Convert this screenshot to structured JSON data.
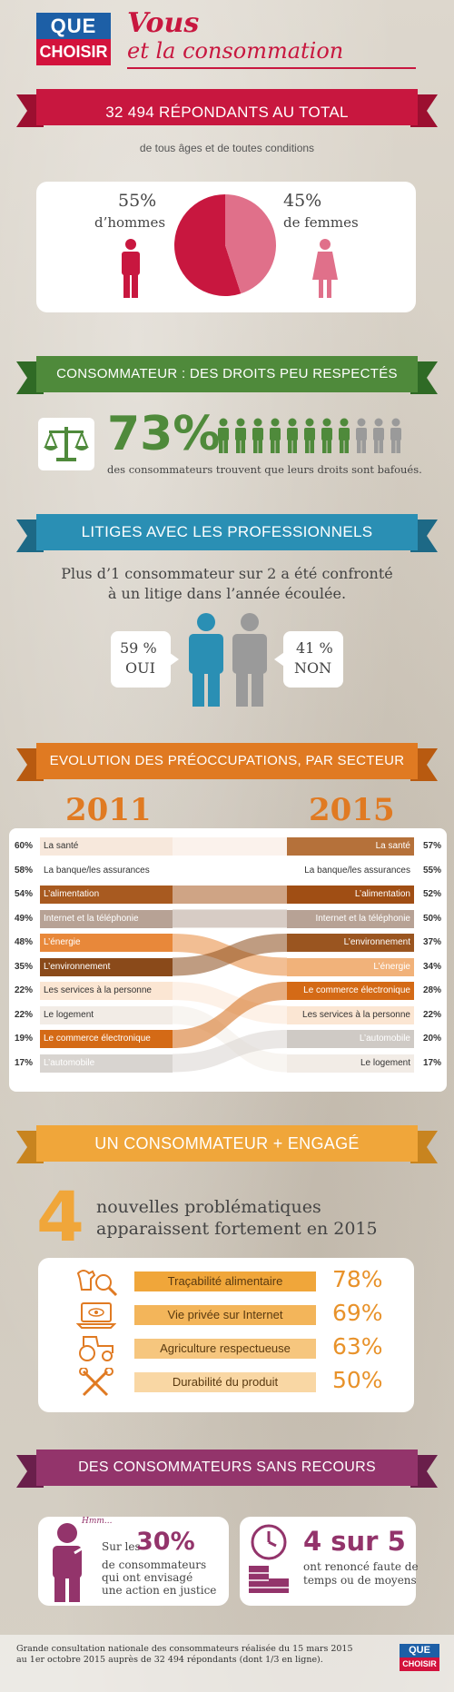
{
  "header": {
    "logo_top": "QUE",
    "logo_bottom": "CHOISIR",
    "title_line1": "Vous",
    "title_line2": "et la consommation"
  },
  "section1": {
    "ribbon": "32 494 RÉPONDANTS AU TOTAL",
    "subtitle": "de tous âges et de toutes conditions",
    "men_pct": "55%",
    "men_label": "d’hommes",
    "women_pct": "45%",
    "women_label": "de femmes",
    "pie": {
      "men": 55,
      "women": 45
    }
  },
  "section2": {
    "ribbon": "CONSOMMATEUR : DES DROITS PEU RESPECTÉS",
    "pct": "73%",
    "text": "des consommateurs trouvent que leurs droits sont bafoués.",
    "filled": 8,
    "total": 11
  },
  "section3": {
    "ribbon": "LITIGES AVEC LES PROFESSIONNELS",
    "line1": "Plus d’1 consommateur sur 2 a été confronté",
    "line2": "à un litige dans l’année écoulée.",
    "oui_pct": "59 %",
    "oui": "OUI",
    "non_pct": "41 %",
    "non": "NON"
  },
  "section4": {
    "ribbon": "EVOLUTION DES PRÉOCCUPATIONS, PAR SECTEUR",
    "year_left": "2011",
    "year_right": "2015",
    "left": [
      [
        "60%",
        "La santé"
      ],
      [
        "58%",
        "La banque/les assurances"
      ],
      [
        "54%",
        "L’alimentation"
      ],
      [
        "49%",
        "Internet et la téléphonie"
      ],
      [
        "48%",
        "L’énergie"
      ],
      [
        "35%",
        "L’environnement"
      ],
      [
        "22%",
        "Les services à la personne"
      ],
      [
        "22%",
        "Le logement"
      ],
      [
        "19%",
        "Le commerce électronique"
      ],
      [
        "17%",
        "L’automobile"
      ]
    ],
    "right": [
      [
        "57%",
        "La santé"
      ],
      [
        "55%",
        "La banque/les assurances"
      ],
      [
        "52%",
        "L’alimentation"
      ],
      [
        "50%",
        "Internet et la téléphonie"
      ],
      [
        "37%",
        "L’environnement"
      ],
      [
        "34%",
        "L’énergie"
      ],
      [
        "28%",
        "Le commerce électronique"
      ],
      [
        "22%",
        "Les services à la personne"
      ],
      [
        "20%",
        "L’automobile"
      ],
      [
        "17%",
        "Le logement"
      ]
    ]
  },
  "section5": {
    "ribbon": "UN CONSOMMATEUR + ENGAGÉ",
    "big": "4",
    "line1": "nouvelles problématiques",
    "line2": "apparaissent fortement en 2015",
    "items": [
      [
        "Traçabilité alimentaire",
        "78%"
      ],
      [
        "Vie privée sur Internet",
        "69%"
      ],
      [
        "Agriculture respectueuse",
        "63%"
      ],
      [
        "Durabilité du produit",
        "50%"
      ]
    ]
  },
  "section6": {
    "ribbon": "DES CONSOMMATEURS SANS RECOURS",
    "hmm": "Hmm...",
    "sur_les": "Sur les",
    "pct": "30%",
    "l1": "de consommateurs",
    "l2": "qui ont envisagé",
    "l3": "une action en justice",
    "big2": "4 sur 5",
    "r1": "ont renoncé faute de",
    "r2": "temps ou de moyens"
  },
  "footer": {
    "line1": "Grande consultation nationale des consommateurs réalisée du 15 mars 2015",
    "line2": "au 1er octobre 2015 auprès de 32 494 répondants (dont 1/3 en ligne).",
    "logo_top": "QUE",
    "logo_bottom": "CHOISIR"
  },
  "colors": {
    "red": "#c8173f",
    "green": "#4f8a3b",
    "teal": "#2a8fb4",
    "orange": "#e07a22",
    "gold": "#f0a63a",
    "purple": "#93346b"
  }
}
